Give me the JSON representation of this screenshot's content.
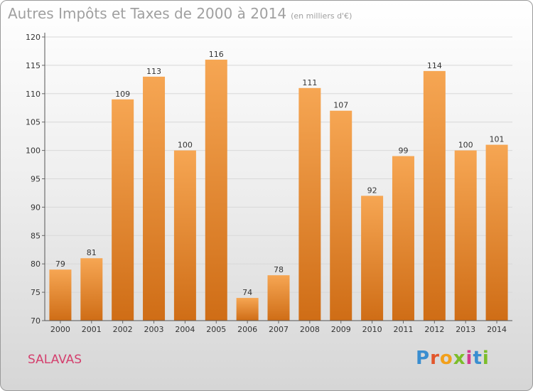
{
  "header": {
    "title": "Autres Impôts et Taxes de 2000 à 2014",
    "unit": "(en milliers d'€)"
  },
  "footer": {
    "place": "SALAVAS",
    "logo_letters": [
      "P",
      "r",
      "o",
      "x",
      "i",
      "t",
      "i"
    ]
  },
  "colors": {
    "bar_top": "#f6a653",
    "bar_bottom": "#cf6d16",
    "place": "#d4406e",
    "logo": [
      "#3a8ed0",
      "#e2562b",
      "#f2a01b",
      "#7cbd2a",
      "#d33a8f",
      "#3a8ed0",
      "#7cbd2a"
    ]
  },
  "chart_data": {
    "type": "bar",
    "title": "Autres Impôts et Taxes de 2000 à 2014",
    "subtitle": "(en milliers d'€)",
    "categories": [
      "2000",
      "2001",
      "2002",
      "2003",
      "2004",
      "2005",
      "2006",
      "2007",
      "2008",
      "2009",
      "2010",
      "2011",
      "2012",
      "2013",
      "2014"
    ],
    "values": [
      79,
      81,
      109,
      113,
      100,
      116,
      74,
      78,
      111,
      107,
      92,
      99,
      114,
      100,
      101
    ],
    "ylim": [
      70,
      120
    ],
    "yticks": [
      70,
      75,
      80,
      85,
      90,
      95,
      100,
      105,
      110,
      115,
      120
    ],
    "grid": true,
    "legend": false
  }
}
